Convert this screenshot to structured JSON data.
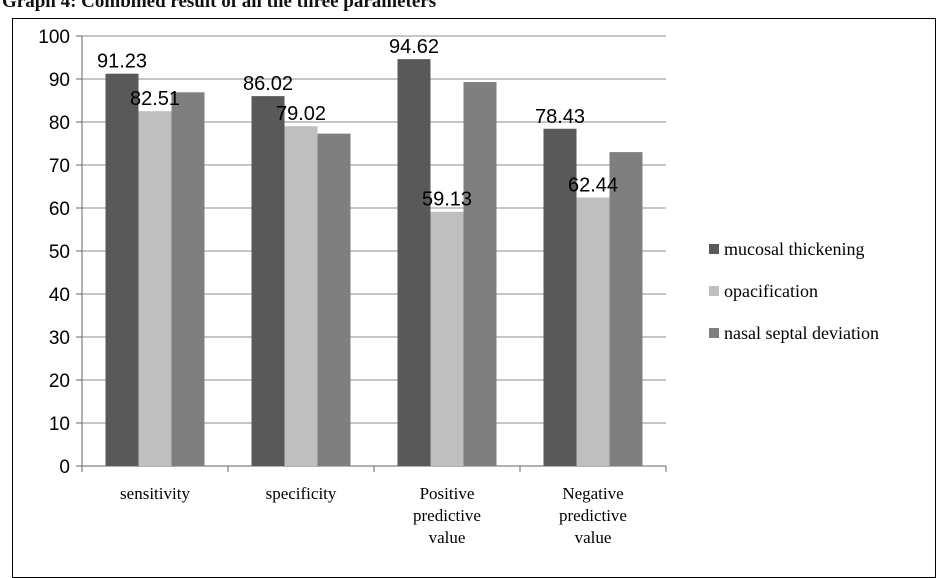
{
  "title": "Graph 4: Combined result of all the three parameters",
  "chart_data": {
    "type": "bar",
    "title": "Graph 4: Combined result of all the three parameters",
    "categories": [
      [
        "sensitivity"
      ],
      [
        "specificity"
      ],
      [
        "Positive",
        "predictive",
        "value"
      ],
      [
        "Negative",
        "predictive",
        "value"
      ]
    ],
    "series": [
      {
        "name": "mucosal thickening",
        "color": "#595959",
        "values": [
          91.23,
          86.02,
          94.62,
          78.43
        ],
        "labels": [
          "91.23",
          "86.02",
          "94.62",
          "78.43"
        ]
      },
      {
        "name": "opacification",
        "color": "#bfbfbf",
        "values": [
          82.51,
          79.02,
          59.13,
          62.44
        ],
        "labels": [
          "82.51",
          "79.02",
          "59.13",
          "62.44"
        ]
      },
      {
        "name": "nasal septal deviation",
        "color": "#7f7f7f",
        "values": [
          86.9,
          77.3,
          89.3,
          73.0
        ],
        "labels": [
          null,
          null,
          null,
          null
        ]
      }
    ],
    "ylim": [
      0,
      100
    ],
    "yticks": [
      0,
      10,
      20,
      30,
      40,
      50,
      60,
      70,
      80,
      90,
      100
    ],
    "grid": true,
    "legend": "right"
  }
}
